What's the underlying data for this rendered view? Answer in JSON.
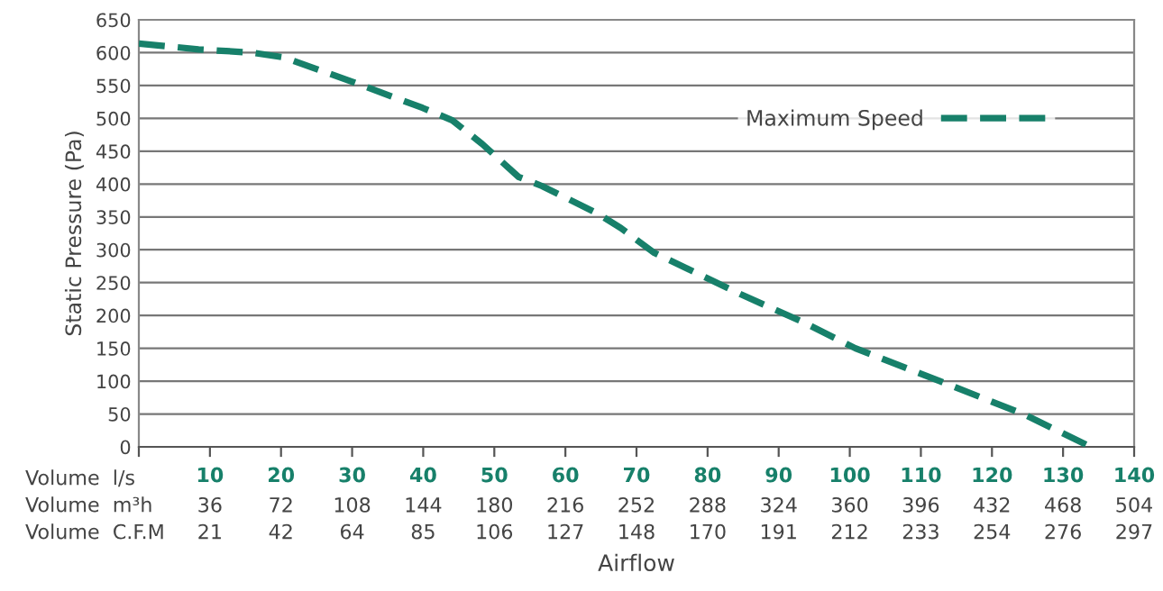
{
  "chart_data": {
    "type": "line",
    "xlabel": "Airflow",
    "ylabel": "Static Pressure (Pa)",
    "annotations": [
      "Volume  l/s",
      "Volume  m³h",
      "Volume  C.F.M",
      "21",
      "42",
      "64",
      "85",
      "106",
      "127",
      "148",
      "170",
      "191",
      "212",
      "233",
      "254",
      "276",
      "297"
    ],
    "series": [
      {
        "name": "Maximum Speed",
        "color": "#17806a",
        "x": [
          0,
          8.4,
          16,
          20.3,
          29.7,
          39.9,
          44.1,
          48.3,
          53.4,
          56.7,
          64.4,
          67.8,
          72.4,
          84.7,
          93.2,
          100.8,
          112.7,
          124.6,
          133.9
        ],
        "values": [
          614,
          605,
          600,
          593,
          557,
          516,
          497,
          461,
          411,
          397,
          356,
          333,
          296,
          232,
          191,
          150,
          100,
          49,
          0
        ]
      }
    ],
    "line_style": "dashed",
    "marker": "none",
    "grid": "y",
    "legend": "top right",
    "xlim": [
      0,
      140
    ],
    "ylim": [
      0,
      650
    ],
    "xticks": [
      {
        "value": 0,
        "label": null
      },
      10,
      20,
      30,
      40,
      50,
      60,
      70,
      80,
      90,
      100,
      110,
      120,
      130,
      140
    ],
    "x2lim": [
      0,
      504
    ],
    "x2ticks": [
      36,
      72,
      108,
      144,
      180,
      216,
      252,
      288,
      324,
      360,
      396,
      432,
      468,
      504
    ],
    "yticks": [
      0,
      50,
      100,
      150,
      200,
      250,
      300,
      350,
      400,
      450,
      500,
      550,
      600,
      650
    ]
  }
}
